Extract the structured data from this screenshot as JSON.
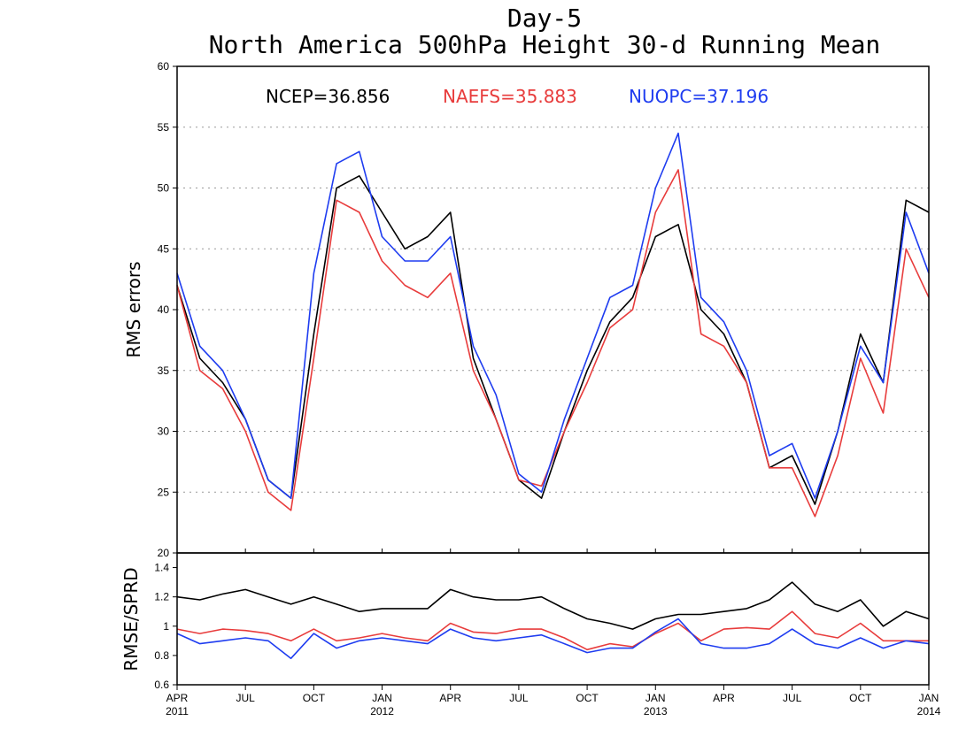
{
  "chart_data": [
    {
      "type": "line",
      "title": "Day-5",
      "subtitle": "North America 500hPa Height 30-d Running Mean",
      "xlabel": "",
      "ylabel": "RMS errors",
      "ylim": [
        20,
        60
      ],
      "yticks": [
        20,
        25,
        30,
        35,
        40,
        45,
        50,
        55,
        60
      ],
      "grid": true,
      "x": [
        "2011-04",
        "2011-05",
        "2011-06",
        "2011-07",
        "2011-08",
        "2011-09",
        "2011-10",
        "2011-11",
        "2011-12",
        "2012-01",
        "2012-02",
        "2012-03",
        "2012-04",
        "2012-05",
        "2012-06",
        "2012-07",
        "2012-08",
        "2012-09",
        "2012-10",
        "2012-11",
        "2012-12",
        "2013-01",
        "2013-02",
        "2013-03",
        "2013-04",
        "2013-05",
        "2013-06",
        "2013-07",
        "2013-08",
        "2013-09",
        "2013-10",
        "2013-11",
        "2013-12",
        "2014-01"
      ],
      "series": [
        {
          "name": "NCEP",
          "mean_label": "NCEP=36.856",
          "color": "#000000",
          "values": [
            42,
            36,
            34,
            31,
            26,
            24.5,
            38,
            50,
            51,
            48,
            45,
            46,
            48,
            36,
            31,
            26,
            24.5,
            30,
            35,
            39,
            41,
            46,
            47,
            40,
            38,
            34,
            27,
            28,
            24,
            30,
            38,
            34,
            49,
            48
          ]
        },
        {
          "name": "NAEFS",
          "mean_label": "NAEFS=35.883",
          "color": "#e83c3c",
          "values": [
            42,
            35,
            33.5,
            30,
            25,
            23.5,
            36,
            49,
            48,
            44,
            42,
            41,
            43,
            35,
            31,
            26,
            25.5,
            30,
            34,
            38.5,
            40,
            48,
            51.5,
            38,
            37,
            34,
            27,
            27,
            23,
            28,
            36,
            31.5,
            45,
            41
          ]
        },
        {
          "name": "NUOPC",
          "mean_label": "NUOPC=37.196",
          "color": "#1e3cf0",
          "values": [
            43,
            37,
            35,
            31,
            26,
            24.5,
            43,
            52,
            53,
            46,
            44,
            44,
            46,
            37,
            33,
            26.5,
            25,
            31,
            36,
            41,
            42,
            50,
            54.5,
            41,
            39,
            35,
            28,
            29,
            24.5,
            30,
            37,
            34,
            48,
            43
          ]
        }
      ],
      "annotations": [
        "NCEP=36.856",
        "NAEFS=35.883",
        "NUOPC=37.196"
      ]
    },
    {
      "type": "line",
      "title": "",
      "xlabel": "",
      "ylabel": "RMSE/SPRD",
      "ylim": [
        0.6,
        1.5
      ],
      "yticks": [
        "0.6",
        "0.8",
        "1",
        "1.2",
        "1.4"
      ],
      "grid": false,
      "x": [
        "2011-04",
        "2011-05",
        "2011-06",
        "2011-07",
        "2011-08",
        "2011-09",
        "2011-10",
        "2011-11",
        "2011-12",
        "2012-01",
        "2012-02",
        "2012-03",
        "2012-04",
        "2012-05",
        "2012-06",
        "2012-07",
        "2012-08",
        "2012-09",
        "2012-10",
        "2012-11",
        "2012-12",
        "2013-01",
        "2013-02",
        "2013-03",
        "2013-04",
        "2013-05",
        "2013-06",
        "2013-07",
        "2013-08",
        "2013-09",
        "2013-10",
        "2013-11",
        "2013-12",
        "2014-01"
      ],
      "series": [
        {
          "name": "NCEP",
          "color": "#000000",
          "values": [
            1.2,
            1.18,
            1.22,
            1.25,
            1.2,
            1.15,
            1.2,
            1.15,
            1.1,
            1.12,
            1.12,
            1.12,
            1.25,
            1.2,
            1.18,
            1.18,
            1.2,
            1.12,
            1.05,
            1.02,
            0.98,
            1.05,
            1.08,
            1.08,
            1.1,
            1.12,
            1.18,
            1.3,
            1.15,
            1.1,
            1.18,
            1.0,
            1.1,
            1.05
          ]
        },
        {
          "name": "NAEFS",
          "color": "#e83c3c",
          "values": [
            0.98,
            0.95,
            0.98,
            0.97,
            0.95,
            0.9,
            0.98,
            0.9,
            0.92,
            0.95,
            0.92,
            0.9,
            1.02,
            0.96,
            0.95,
            0.98,
            0.98,
            0.92,
            0.84,
            0.88,
            0.86,
            0.95,
            1.02,
            0.9,
            0.98,
            0.99,
            0.98,
            1.1,
            0.95,
            0.92,
            1.02,
            0.9,
            0.9,
            0.9
          ]
        },
        {
          "name": "NUOPC",
          "color": "#1e3cf0",
          "values": [
            0.95,
            0.88,
            0.9,
            0.92,
            0.9,
            0.78,
            0.95,
            0.85,
            0.9,
            0.92,
            0.9,
            0.88,
            0.98,
            0.92,
            0.9,
            0.92,
            0.94,
            0.88,
            0.82,
            0.85,
            0.85,
            0.96,
            1.05,
            0.88,
            0.85,
            0.85,
            0.88,
            0.98,
            0.88,
            0.85,
            0.92,
            0.85,
            0.9,
            0.88
          ]
        }
      ]
    }
  ],
  "x_axis": {
    "ticks": [
      {
        "label": "APR",
        "sub": "2011"
      },
      {
        "label": "JUL",
        "sub": ""
      },
      {
        "label": "OCT",
        "sub": ""
      },
      {
        "label": "JAN",
        "sub": "2012"
      },
      {
        "label": "APR",
        "sub": ""
      },
      {
        "label": "JUL",
        "sub": ""
      },
      {
        "label": "OCT",
        "sub": ""
      },
      {
        "label": "JAN",
        "sub": "2013"
      },
      {
        "label": "APR",
        "sub": ""
      },
      {
        "label": "JUL",
        "sub": ""
      },
      {
        "label": "OCT",
        "sub": ""
      },
      {
        "label": "JAN",
        "sub": "2014"
      }
    ]
  }
}
